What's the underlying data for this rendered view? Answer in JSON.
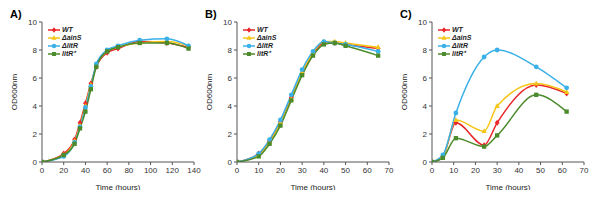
{
  "chart_data": [
    {
      "type": "line",
      "title": "A)",
      "x_label": "Time (hours)",
      "y_label": "OD600nm",
      "x": [
        0,
        20,
        30,
        35,
        40,
        45,
        50,
        60,
        70,
        90,
        115,
        135
      ],
      "xlim": [
        0,
        140
      ],
      "xticks": [
        0,
        20,
        40,
        60,
        80,
        100,
        120,
        140
      ],
      "ylim": [
        0,
        10
      ],
      "yticks": [
        0,
        2,
        4,
        6,
        8,
        10
      ],
      "grid": false,
      "legend": "upper left",
      "series": [
        {
          "name": "WT",
          "color": "#e8262b",
          "marker": "diamond",
          "values": [
            0,
            0.6,
            1.6,
            2.8,
            4.2,
            5.6,
            6.8,
            7.8,
            8.1,
            8.6,
            8.5,
            8.2
          ]
        },
        {
          "name": "ΔainS",
          "color": "#f5c518",
          "marker": "triangle",
          "values": [
            0,
            0.5,
            1.5,
            2.6,
            4.0,
            5.5,
            6.9,
            7.9,
            8.2,
            8.5,
            8.6,
            8.3
          ]
        },
        {
          "name": "ΔlitR",
          "color": "#3ab0e8",
          "marker": "circle",
          "values": [
            0,
            0.4,
            1.4,
            2.5,
            3.9,
            5.4,
            7.0,
            8.0,
            8.3,
            8.7,
            8.8,
            8.3
          ]
        },
        {
          "name": "litR⁺",
          "color": "#4b8b2b",
          "marker": "square",
          "values": [
            0,
            0.5,
            1.3,
            2.4,
            3.6,
            5.2,
            6.8,
            7.9,
            8.2,
            8.5,
            8.5,
            8.1
          ]
        }
      ]
    },
    {
      "type": "line",
      "title": "B)",
      "x_label": "Time (hours)",
      "y_label": "OD600nm",
      "x": [
        0,
        10,
        15,
        20,
        25,
        30,
        35,
        40,
        45,
        50,
        65
      ],
      "xlim": [
        0,
        70
      ],
      "xticks": [
        0,
        10,
        20,
        30,
        40,
        50,
        60,
        70
      ],
      "ylim": [
        0,
        10
      ],
      "yticks": [
        0,
        2,
        4,
        6,
        8,
        10
      ],
      "grid": false,
      "legend": "upper left",
      "series": [
        {
          "name": "WT",
          "color": "#e8262b",
          "marker": "diamond",
          "values": [
            0,
            0.6,
            1.5,
            2.9,
            4.6,
            6.3,
            7.7,
            8.5,
            8.5,
            8.4,
            8.1
          ]
        },
        {
          "name": "ΔainS",
          "color": "#f5c518",
          "marker": "triangle",
          "values": [
            0,
            0.5,
            1.4,
            2.8,
            4.5,
            6.4,
            7.8,
            8.6,
            8.6,
            8.5,
            8.2
          ]
        },
        {
          "name": "ΔlitR",
          "color": "#3ab0e8",
          "marker": "circle",
          "values": [
            0,
            0.6,
            1.6,
            3.0,
            4.8,
            6.6,
            7.9,
            8.6,
            8.5,
            8.4,
            7.9
          ]
        },
        {
          "name": "litR⁺",
          "color": "#4b8b2b",
          "marker": "square",
          "values": [
            0,
            0.4,
            1.3,
            2.6,
            4.4,
            6.2,
            7.6,
            8.4,
            8.5,
            8.3,
            7.6
          ]
        }
      ]
    },
    {
      "type": "line",
      "title": "C)",
      "x_label": "Time (hours)",
      "y_label": "OD600nm",
      "x": [
        0,
        5,
        11,
        24,
        30,
        48,
        62
      ],
      "xlim": [
        0,
        70
      ],
      "xticks": [
        0,
        10,
        20,
        30,
        40,
        50,
        60,
        70
      ],
      "ylim": [
        0,
        10
      ],
      "yticks": [
        0,
        2,
        4,
        6,
        8,
        10
      ],
      "grid": false,
      "legend": "upper left",
      "series": [
        {
          "name": "WT",
          "color": "#e8262b",
          "marker": "diamond",
          "values": [
            0,
            0.4,
            2.8,
            1.2,
            2.8,
            5.5,
            4.9
          ]
        },
        {
          "name": "ΔainS",
          "color": "#f5c518",
          "marker": "triangle",
          "values": [
            0,
            0.4,
            3.0,
            2.2,
            4.0,
            5.6,
            5.0
          ]
        },
        {
          "name": "ΔlitR",
          "color": "#3ab0e8",
          "marker": "circle",
          "values": [
            0,
            0.5,
            3.5,
            7.5,
            8.0,
            6.8,
            5.3
          ]
        },
        {
          "name": "litR⁺",
          "color": "#4b8b2b",
          "marker": "square",
          "values": [
            0,
            0.3,
            1.7,
            1.1,
            1.9,
            4.8,
            3.6
          ]
        }
      ]
    }
  ]
}
